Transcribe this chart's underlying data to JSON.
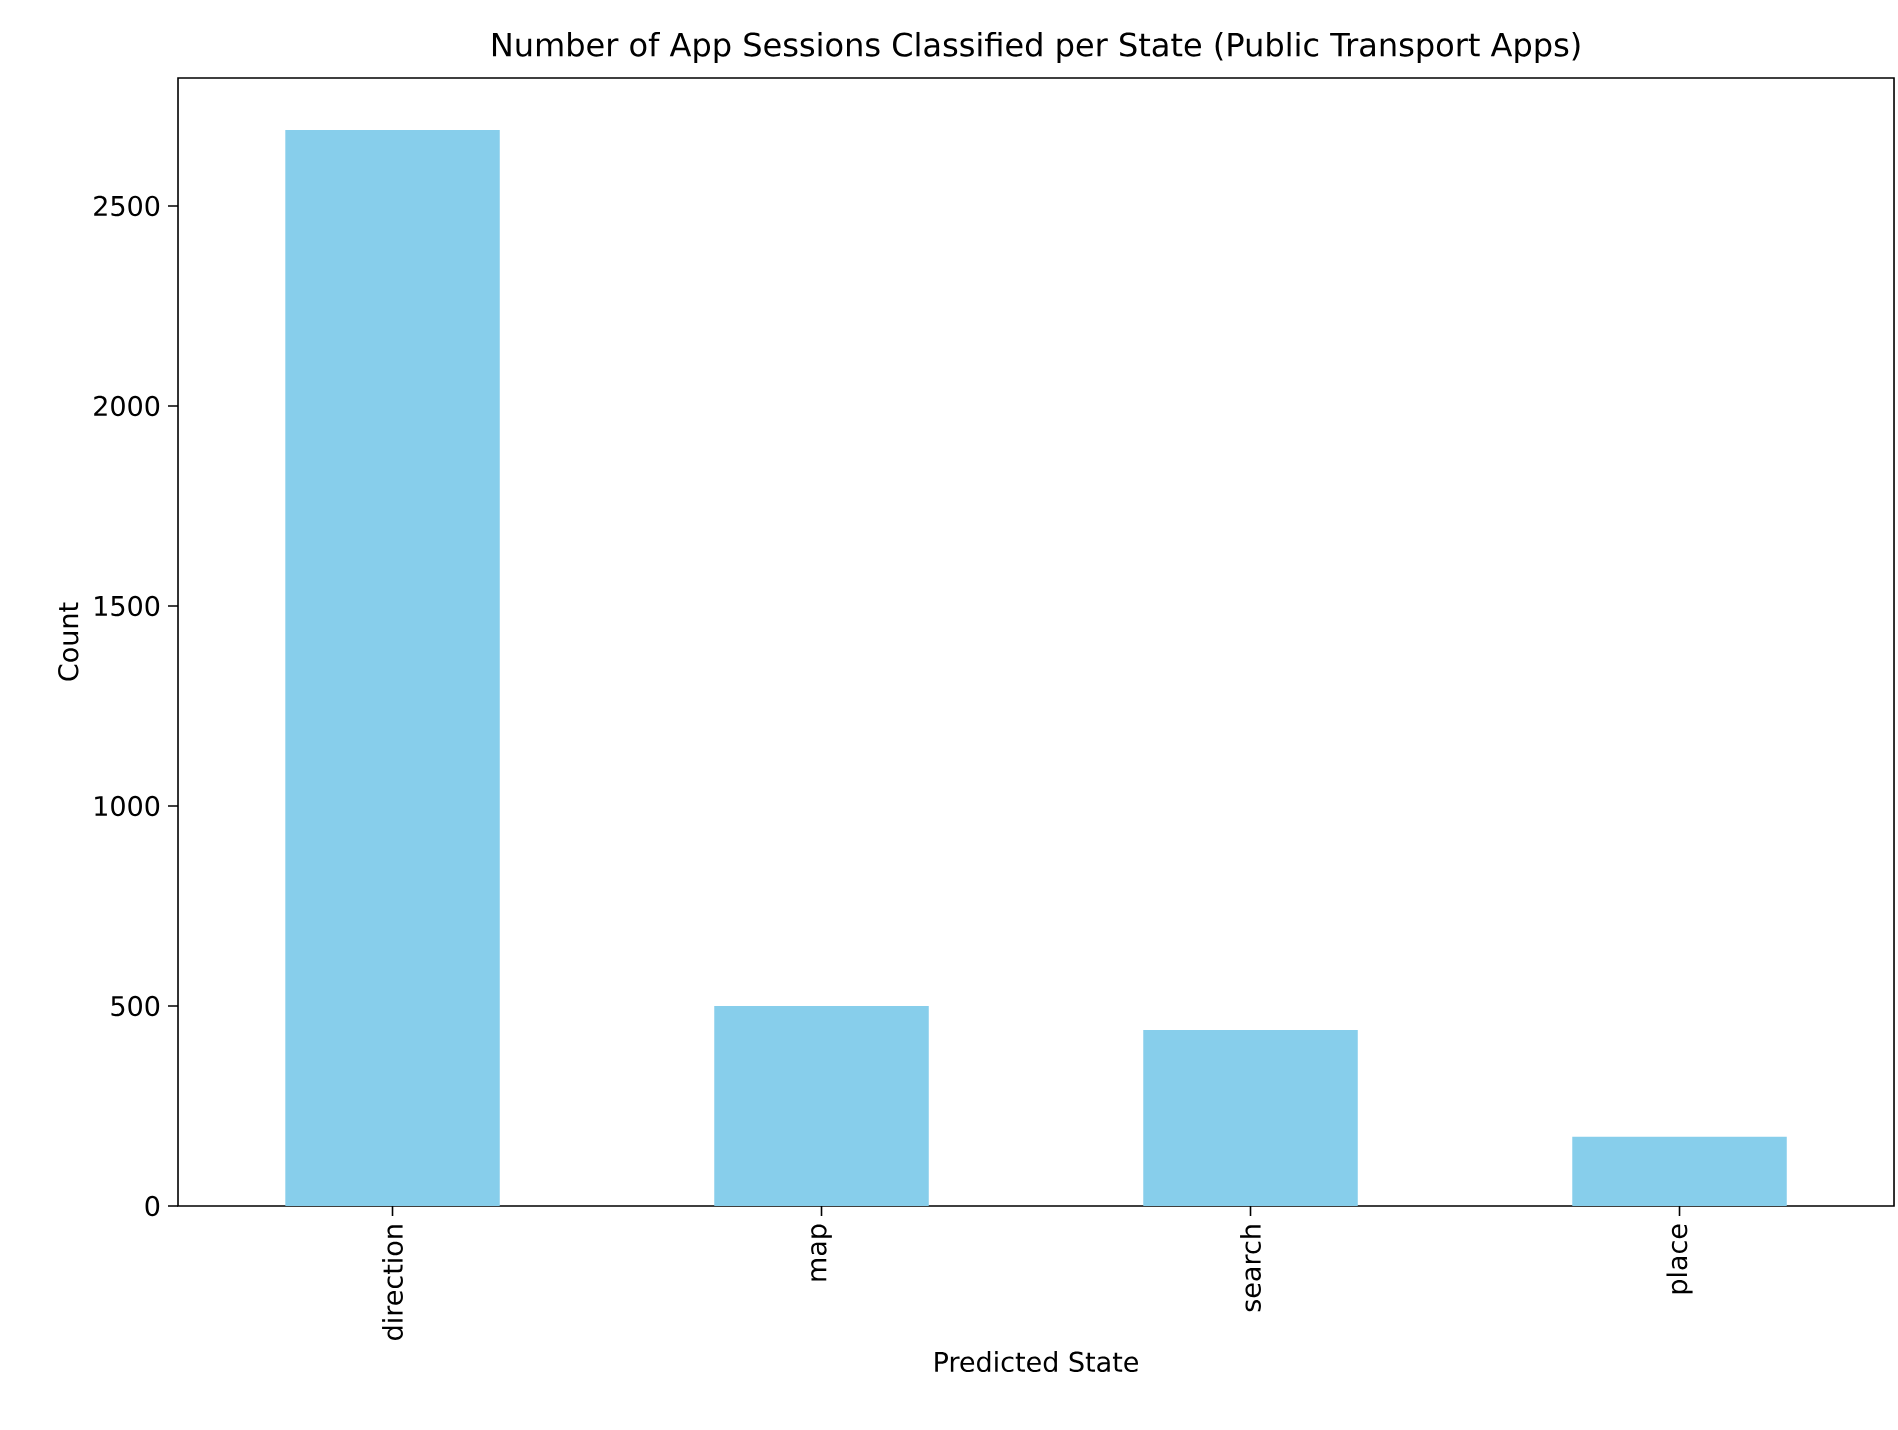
{
  "chart_data": {
    "type": "bar",
    "title": "Number of App Sessions Classified per State (Public Transport Apps)",
    "xlabel": "Predicted State",
    "ylabel": "Count",
    "categories": [
      "direction",
      "map",
      "search",
      "place"
    ],
    "values": [
      2690,
      500,
      440,
      173
    ],
    "color": "#87ceeb",
    "ylim": [
      0,
      2820
    ],
    "yticks": [
      0,
      500,
      1000,
      1500,
      2000,
      2500
    ]
  }
}
